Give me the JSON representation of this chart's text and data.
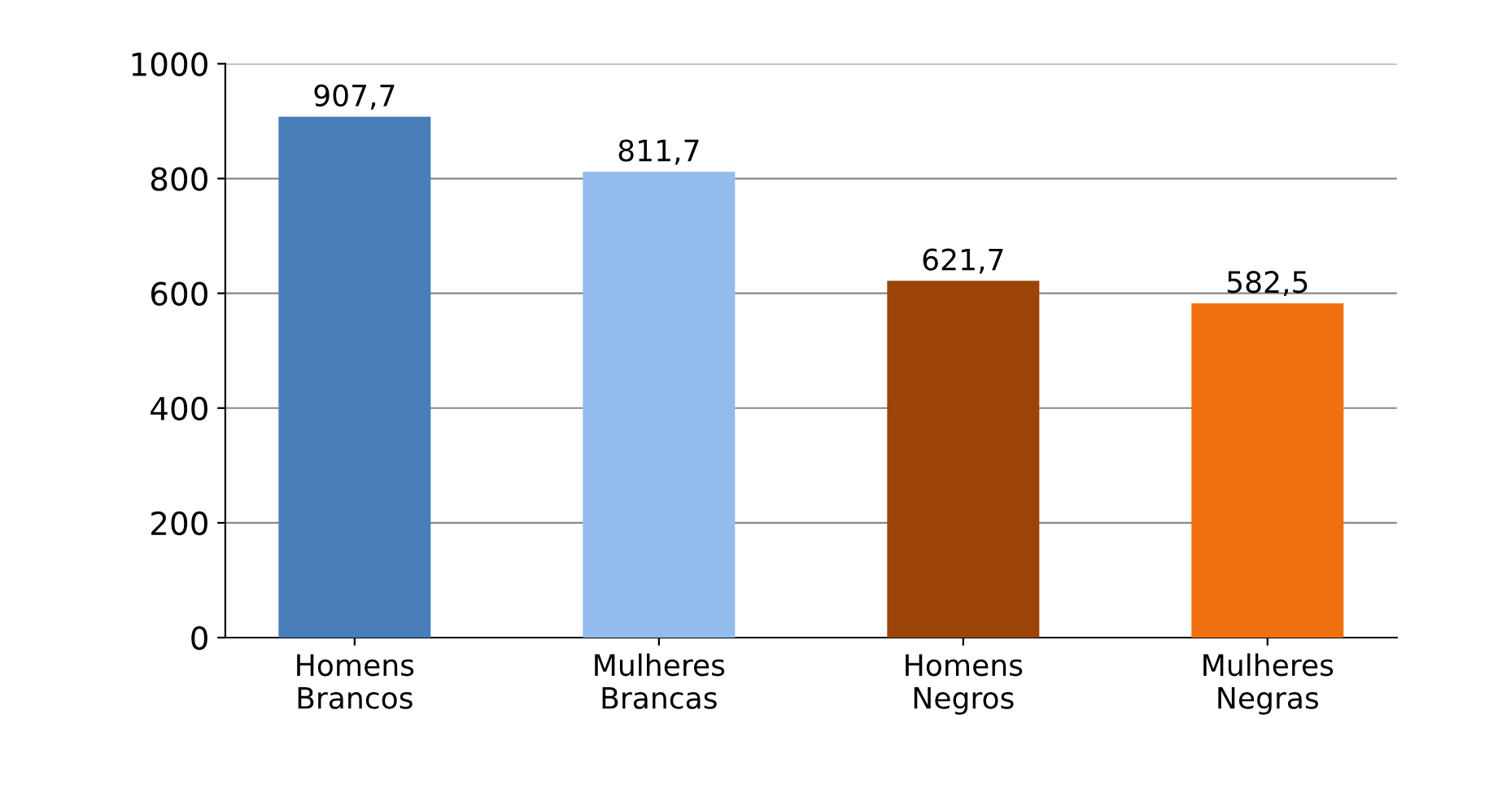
{
  "chart_data": {
    "type": "bar",
    "categories": [
      "Homens\nBrancos",
      "Mulheres\nBrancas",
      "Homens\nNegros",
      "Mulheres\nNegras"
    ],
    "values": [
      907.7,
      811.7,
      621.7,
      582.5
    ],
    "colors": [
      "#4a7ebb",
      "#94bbee",
      "#9c4408",
      "#f07010"
    ],
    "value_labels": [
      "907,7",
      "811,7",
      "621,7",
      "582,5"
    ],
    "ylim": [
      0,
      1000
    ],
    "yticks": [
      0,
      200,
      400,
      600,
      800,
      1000
    ],
    "grid": "y"
  }
}
